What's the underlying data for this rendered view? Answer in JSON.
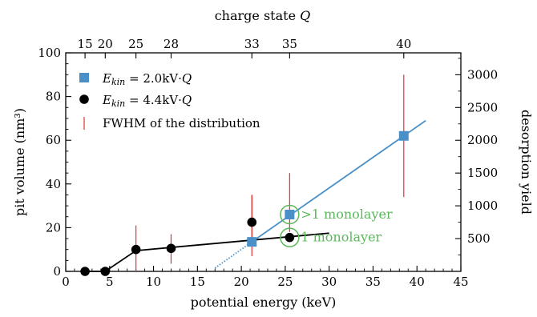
{
  "chart_data": {
    "type": "scatter",
    "xlabel": "potential energy (keV)",
    "ylabel": "pit volume (nm³)",
    "y2label": "desorption yield",
    "x2label": "charge state Q",
    "xlim": [
      0,
      45
    ],
    "ylim": [
      0,
      100
    ],
    "y2lim": [
      0,
      3334
    ],
    "xticks": [
      0,
      5,
      10,
      15,
      20,
      25,
      30,
      35,
      40,
      45
    ],
    "yticks": [
      0,
      20,
      40,
      60,
      80,
      100
    ],
    "y2ticks": [
      500,
      1000,
      1500,
      2000,
      2500,
      3000
    ],
    "top_ticks": [
      {
        "label": "15",
        "x": 2.2
      },
      {
        "label": "20",
        "x": 4.5
      },
      {
        "label": "25",
        "x": 8.0
      },
      {
        "label": "28",
        "x": 12.0
      },
      {
        "label": "33",
        "x": 21.2
      },
      {
        "label": "35",
        "x": 25.5
      },
      {
        "label": "40",
        "x": 38.5
      }
    ],
    "grid": false,
    "legend_position": "top-left",
    "legend": {
      "ekin2_label_main": "E",
      "ekin2_label_sub": "kin",
      "ekin2_label_rest": " = 2.0kV·Q",
      "ekin4_label_main": "E",
      "ekin4_label_sub": "kin",
      "ekin4_label_rest": " = 4.4kV·Q",
      "fwhm_label": "FWHM of the distribution"
    },
    "series": [
      {
        "name": "Ekin = 2.0kV·Q",
        "marker": "square",
        "color": "#4a90c8",
        "x": [
          21.2,
          25.5,
          38.5
        ],
        "y": [
          13.5,
          26,
          62
        ],
        "err_low": [
          7,
          18,
          34
        ],
        "err_high": [
          35,
          45,
          90
        ],
        "fit_line": {
          "x": [
            21.2,
            41
          ],
          "y": [
            13.5,
            69
          ]
        },
        "dotted_line": {
          "x": [
            17,
            21.2
          ],
          "y": [
            1.5,
            13.5
          ]
        }
      },
      {
        "name": "Ekin = 4.4kV·Q",
        "marker": "circle",
        "color": "#000000",
        "x": [
          2.2,
          4.5,
          8.0,
          12.0,
          21.2,
          25.5
        ],
        "y": [
          0,
          0,
          10,
          10.5,
          22.5,
          15.5
        ],
        "err_low": [
          0,
          0,
          0,
          3.5,
          13,
          0
        ],
        "err_high": [
          0,
          0,
          21,
          17,
          35,
          0
        ],
        "fit_line": {
          "x": [
            2.2,
            4.5,
            8.0,
            30
          ],
          "y": [
            0,
            0,
            9.5,
            17.5
          ]
        }
      }
    ],
    "annotations": [
      {
        "text": ">1 monolayer",
        "x": 25.5,
        "y": 26,
        "color": "#5bb85b"
      },
      {
        "text": "1 monolayer",
        "x": 25.5,
        "y": 15.5,
        "color": "#5bb85b"
      }
    ],
    "colors": {
      "errorbar": "#e83030",
      "annotation": "#5bb85b"
    }
  }
}
